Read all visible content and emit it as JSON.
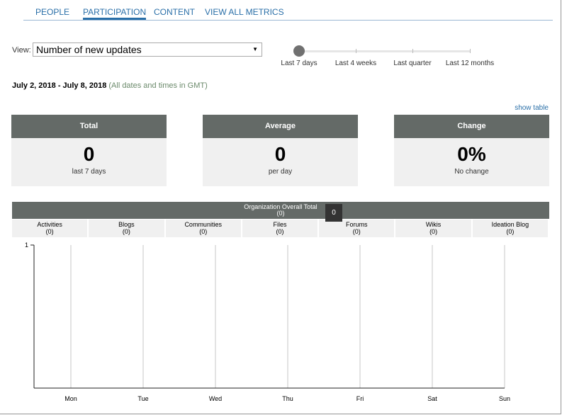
{
  "tabs": [
    "PEOPLE",
    "PARTICIPATION",
    "CONTENT",
    "VIEW ALL METRICS"
  ],
  "view": {
    "label": "View:",
    "selected": "Number of new updates"
  },
  "slider": {
    "stops": [
      "Last 7 days",
      "Last 4 weeks",
      "Last quarter",
      "Last 12 months"
    ]
  },
  "date_range": {
    "dates": "July 2, 2018 - July 8, 2018",
    "note": "(All dates and times in GMT)"
  },
  "show_table": "show table",
  "cards": [
    {
      "title": "Total",
      "value": "0",
      "caption": "last 7 days"
    },
    {
      "title": "Average",
      "value": "0",
      "caption": "per day"
    },
    {
      "title": "Change",
      "value": "0%",
      "caption": "No change"
    }
  ],
  "chart": {
    "title": "Organization Overall Total",
    "total": "(0)",
    "tooltip": "0",
    "legend": [
      {
        "name": "Activities",
        "count": "(0)"
      },
      {
        "name": "Blogs",
        "count": "(0)"
      },
      {
        "name": "Communities",
        "count": "(0)"
      },
      {
        "name": "Files",
        "count": "(0)"
      },
      {
        "name": "Forums",
        "count": "(0)"
      },
      {
        "name": "Wikis",
        "count": "(0)"
      },
      {
        "name": "Ideation Blog",
        "count": "(0)"
      }
    ],
    "categories": [
      "Mon",
      "Tue",
      "Wed",
      "Thu",
      "Fri",
      "Sat",
      "Sun"
    ],
    "ylim": [
      0,
      1
    ],
    "yticks": [
      1
    ]
  }
}
